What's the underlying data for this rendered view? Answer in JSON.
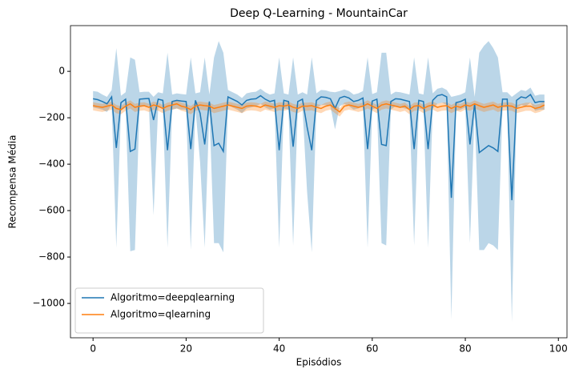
{
  "chart_data": {
    "type": "line",
    "title": "Deep Q-Learning - MountainCar",
    "x_label": "Episódios",
    "y_label": "Recompensa Média",
    "x": [
      0,
      1,
      2,
      3,
      4,
      5,
      6,
      7,
      8,
      9,
      10,
      11,
      12,
      13,
      14,
      15,
      16,
      17,
      18,
      19,
      20,
      21,
      22,
      23,
      24,
      25,
      26,
      27,
      28,
      29,
      30,
      31,
      32,
      33,
      34,
      35,
      36,
      37,
      38,
      39,
      40,
      41,
      42,
      43,
      44,
      45,
      46,
      47,
      48,
      49,
      50,
      51,
      52,
      53,
      54,
      55,
      56,
      57,
      58,
      59,
      60,
      61,
      62,
      63,
      64,
      65,
      66,
      67,
      68,
      69,
      70,
      71,
      72,
      73,
      74,
      75,
      76,
      77,
      78,
      79,
      80,
      81,
      82,
      83,
      84,
      85,
      86,
      87,
      88,
      89,
      90,
      91,
      92,
      93,
      94,
      95,
      96,
      97
    ],
    "series": [
      {
        "name": "Algoritmo=deepqlearning",
        "color": "#1f77b4",
        "values": [
          -118,
          -122,
          -130,
          -140,
          -110,
          -330,
          -135,
          -120,
          -345,
          -335,
          -120,
          -118,
          -117,
          -210,
          -120,
          -125,
          -340,
          -130,
          -125,
          -128,
          -130,
          -335,
          -125,
          -180,
          -315,
          -130,
          -320,
          -310,
          -345,
          -110,
          -120,
          -130,
          -145,
          -125,
          -120,
          -118,
          -105,
          -120,
          -130,
          -125,
          -340,
          -125,
          -130,
          -325,
          -130,
          -120,
          -240,
          -340,
          -125,
          -110,
          -112,
          -118,
          -160,
          -115,
          -108,
          -115,
          -130,
          -125,
          -115,
          -335,
          -128,
          -120,
          -315,
          -320,
          -130,
          -118,
          -120,
          -125,
          -130,
          -335,
          -125,
          -130,
          -335,
          -125,
          -105,
          -100,
          -110,
          -545,
          -135,
          -130,
          -120,
          -315,
          -140,
          -350,
          -335,
          -320,
          -330,
          -345,
          -120,
          -120,
          -555,
          -125,
          -110,
          -115,
          -100,
          -135,
          -130,
          -130
        ],
        "lower": [
          -155,
          -160,
          -165,
          -175,
          -145,
          -760,
          -170,
          -155,
          -775,
          -770,
          -155,
          -150,
          -150,
          -620,
          -155,
          -160,
          -760,
          -165,
          -160,
          -165,
          -165,
          -770,
          -160,
          -390,
          -760,
          -165,
          -740,
          -740,
          -780,
          -145,
          -155,
          -165,
          -180,
          -160,
          -155,
          -150,
          -140,
          -155,
          -165,
          -160,
          -760,
          -160,
          -165,
          -750,
          -165,
          -155,
          -520,
          -780,
          -160,
          -145,
          -145,
          -150,
          -250,
          -150,
          -140,
          -150,
          -165,
          -160,
          -150,
          -760,
          -165,
          -155,
          -740,
          -750,
          -165,
          -150,
          -155,
          -160,
          -165,
          -750,
          -160,
          -165,
          -760,
          -160,
          -140,
          -135,
          -145,
          -1070,
          -170,
          -165,
          -155,
          -740,
          -175,
          -770,
          -770,
          -740,
          -750,
          -770,
          -155,
          -155,
          -1080,
          -160,
          -145,
          -150,
          -135,
          -170,
          -165,
          -165
        ],
        "upper": [
          -85,
          -88,
          -100,
          -110,
          -80,
          100,
          -105,
          -90,
          60,
          50,
          -90,
          -88,
          -88,
          -110,
          -90,
          -95,
          80,
          -100,
          -95,
          -98,
          -100,
          60,
          -95,
          -90,
          60,
          -100,
          60,
          130,
          80,
          -80,
          -90,
          -100,
          -115,
          -95,
          -90,
          -88,
          -75,
          -90,
          -100,
          -95,
          60,
          -95,
          -100,
          60,
          -100,
          -90,
          -100,
          60,
          -95,
          -80,
          -82,
          -88,
          -90,
          -85,
          -78,
          -85,
          -100,
          -95,
          -85,
          60,
          -98,
          -90,
          80,
          80,
          -100,
          -88,
          -90,
          -95,
          -100,
          60,
          -95,
          -100,
          60,
          -95,
          -75,
          -70,
          -80,
          -110,
          -105,
          -100,
          -90,
          60,
          -110,
          80,
          110,
          130,
          100,
          60,
          -90,
          -90,
          -110,
          -95,
          -80,
          -85,
          -70,
          -105,
          -100,
          -100
        ]
      },
      {
        "name": "Algoritmo=qlearning",
        "color": "#ff7f0e",
        "values": [
          -148,
          -152,
          -155,
          -150,
          -145,
          -160,
          -165,
          -150,
          -140,
          -155,
          -150,
          -148,
          -155,
          -145,
          -150,
          -160,
          -150,
          -145,
          -140,
          -150,
          -155,
          -165,
          -150,
          -145,
          -148,
          -150,
          -160,
          -155,
          -150,
          -145,
          -150,
          -155,
          -160,
          -150,
          -148,
          -150,
          -155,
          -145,
          -150,
          -155,
          -148,
          -150,
          -145,
          -155,
          -160,
          -150,
          -150,
          -148,
          -155,
          -160,
          -150,
          -145,
          -160,
          -175,
          -150,
          -145,
          -150,
          -155,
          -150,
          -140,
          -150,
          -160,
          -145,
          -140,
          -145,
          -150,
          -155,
          -150,
          -165,
          -150,
          -148,
          -160,
          -150,
          -145,
          -155,
          -150,
          -148,
          -160,
          -150,
          -155,
          -145,
          -150,
          -140,
          -148,
          -155,
          -150,
          -145,
          -155,
          -150,
          -148,
          -150,
          -160,
          -155,
          -150,
          -150,
          -160,
          -155,
          -145
        ],
        "lower": [
          -168,
          -172,
          -175,
          -170,
          -165,
          -180,
          -185,
          -170,
          -160,
          -175,
          -170,
          -168,
          -175,
          -165,
          -170,
          -180,
          -170,
          -165,
          -160,
          -170,
          -175,
          -185,
          -170,
          -165,
          -168,
          -170,
          -180,
          -175,
          -170,
          -165,
          -170,
          -175,
          -180,
          -170,
          -168,
          -170,
          -175,
          -165,
          -170,
          -175,
          -168,
          -170,
          -165,
          -175,
          -180,
          -170,
          -170,
          -168,
          -175,
          -180,
          -170,
          -165,
          -180,
          -195,
          -170,
          -165,
          -170,
          -175,
          -170,
          -160,
          -170,
          -180,
          -165,
          -160,
          -165,
          -170,
          -175,
          -170,
          -185,
          -170,
          -168,
          -180,
          -170,
          -165,
          -175,
          -170,
          -168,
          -180,
          -170,
          -175,
          -165,
          -170,
          -160,
          -168,
          -175,
          -170,
          -165,
          -175,
          -170,
          -168,
          -170,
          -180,
          -175,
          -170,
          -170,
          -180,
          -175,
          -165
        ],
        "upper": [
          -133,
          -137,
          -140,
          -135,
          -130,
          -145,
          -150,
          -135,
          -125,
          -140,
          -135,
          -133,
          -140,
          -130,
          -135,
          -145,
          -135,
          -130,
          -125,
          -135,
          -140,
          -150,
          -135,
          -130,
          -133,
          -135,
          -145,
          -140,
          -135,
          -130,
          -135,
          -140,
          -145,
          -135,
          -133,
          -135,
          -140,
          -130,
          -135,
          -140,
          -133,
          -135,
          -130,
          -140,
          -145,
          -135,
          -135,
          -133,
          -140,
          -145,
          -135,
          -130,
          -145,
          -160,
          -135,
          -130,
          -135,
          -140,
          -135,
          -125,
          -135,
          -145,
          -130,
          -125,
          -130,
          -135,
          -140,
          -135,
          -150,
          -135,
          -133,
          -145,
          -135,
          -130,
          -140,
          -135,
          -133,
          -145,
          -135,
          -140,
          -130,
          -135,
          -125,
          -133,
          -140,
          -135,
          -130,
          -140,
          -135,
          -133,
          -135,
          -145,
          -140,
          -135,
          -135,
          -145,
          -140,
          -130
        ]
      }
    ],
    "xlim": [
      -4.85,
      101.85
    ],
    "xticks": [
      0,
      20,
      40,
      60,
      80,
      100
    ],
    "ylim": [
      -1148,
      197
    ],
    "yticks": [
      {
        "value": -1000,
        "label": "−1000"
      },
      {
        "value": -800,
        "label": "−800"
      },
      {
        "value": -600,
        "label": "−600"
      },
      {
        "value": -400,
        "label": "−400"
      },
      {
        "value": -200,
        "label": "−200"
      },
      0
    ],
    "legend": "lower left"
  }
}
